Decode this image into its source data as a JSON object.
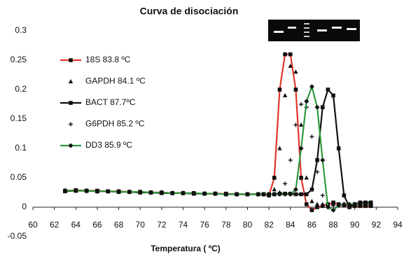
{
  "chart_data": {
    "type": "line",
    "title": "Curva de disociación",
    "x_label": "Temperatura ( ºC)",
    "x": [
      63,
      64,
      65,
      66,
      67,
      68,
      69,
      70,
      71,
      72,
      73,
      74,
      75,
      76,
      77,
      78,
      79,
      80,
      81,
      81.5,
      82,
      82.5,
      83,
      83.5,
      84,
      84.5,
      85,
      85.5,
      86,
      86.5,
      87,
      87.5,
      88,
      88.5,
      89,
      89.5,
      90,
      90.5,
      91,
      91.5
    ],
    "xlim": [
      60,
      94
    ],
    "xticks": [
      60,
      62,
      64,
      66,
      68,
      70,
      72,
      74,
      76,
      78,
      80,
      82,
      84,
      86,
      88,
      90,
      92,
      94
    ],
    "ylim": [
      -0.05,
      0.3
    ],
    "yticks": [
      -0.05,
      0,
      0.05,
      0.1,
      0.15,
      0.2,
      0.25,
      0.3
    ],
    "series": [
      {
        "name": "18S  83.8 ºC",
        "color": "#e2362b",
        "line": true,
        "marker": "square",
        "values": [
          0.028,
          0.029,
          0.028,
          0.028,
          0.027,
          0.027,
          0.026,
          0.026,
          0.025,
          0.025,
          0.024,
          0.024,
          0.024,
          0.023,
          0.023,
          0.023,
          0.022,
          0.022,
          0.022,
          0.022,
          0.02,
          0.05,
          0.2,
          0.26,
          0.26,
          0.2,
          0.05,
          0.005,
          -0.005,
          0,
          0.002,
          0.005,
          0.008,
          0.005,
          0.003,
          0.002,
          0.002,
          0.002,
          0.002,
          0.002
        ]
      },
      {
        "name": "GAPDH  84.1 ºC",
        "color": "#111111",
        "line": false,
        "marker": "triangle",
        "values": [
          0.029,
          0.028,
          0.028,
          0.027,
          0.027,
          0.027,
          0.026,
          0.025,
          0.025,
          0.025,
          0.024,
          0.024,
          0.023,
          0.023,
          0.023,
          0.022,
          0.022,
          0.022,
          0.022,
          0.022,
          0.021,
          0.03,
          0.1,
          0.19,
          0.24,
          0.23,
          0.14,
          0.05,
          0.01,
          0.005,
          0.005,
          0.005,
          0.005,
          0.005,
          0.005,
          0.005,
          0.005,
          0.005,
          0.005,
          0.005
        ]
      },
      {
        "name": "BACT 87.7ºC",
        "color": "#111111",
        "line": true,
        "marker": "square",
        "values": [
          0.027,
          0.028,
          0.028,
          0.027,
          0.027,
          0.026,
          0.026,
          0.025,
          0.025,
          0.024,
          0.024,
          0.024,
          0.023,
          0.023,
          0.023,
          0.022,
          0.022,
          0.022,
          0.022,
          0.022,
          0.022,
          0.022,
          0.023,
          0.023,
          0.023,
          0.022,
          0.022,
          0.022,
          0.03,
          0.08,
          0.17,
          0.2,
          0.19,
          0.1,
          0.02,
          0,
          0.005,
          0.008,
          0.008,
          0.008
        ]
      },
      {
        "name": "G6PDH 85.2 ºC",
        "color": "#111111",
        "line": false,
        "marker": "plus",
        "values": [
          0.028,
          0.028,
          0.027,
          0.027,
          0.027,
          0.026,
          0.026,
          0.025,
          0.025,
          0.025,
          0.024,
          0.024,
          0.023,
          0.023,
          0.023,
          0.022,
          0.022,
          0.022,
          0.022,
          0.022,
          0.022,
          0.022,
          0.025,
          0.04,
          0.08,
          0.14,
          0.175,
          0.17,
          0.12,
          0.06,
          0.02,
          0.005,
          0.004,
          0.003,
          0.003,
          0.003,
          0.003,
          0.003,
          0.003,
          0.003
        ]
      },
      {
        "name": "DD3 85.9 ºC",
        "color": "#2f9a3c",
        "line": true,
        "marker": "diamond",
        "values": [
          0.028,
          0.028,
          0.028,
          0.027,
          0.027,
          0.026,
          0.026,
          0.026,
          0.025,
          0.025,
          0.024,
          0.024,
          0.024,
          0.023,
          0.023,
          0.022,
          0.022,
          0.022,
          0.022,
          0.022,
          0.022,
          0.022,
          0.022,
          0.022,
          0.022,
          0.03,
          0.1,
          0.18,
          0.205,
          0.17,
          0.08,
          0,
          -0.005,
          0.003,
          0.005,
          0.005,
          0.005,
          0.005,
          0.005,
          0.005
        ]
      }
    ]
  }
}
